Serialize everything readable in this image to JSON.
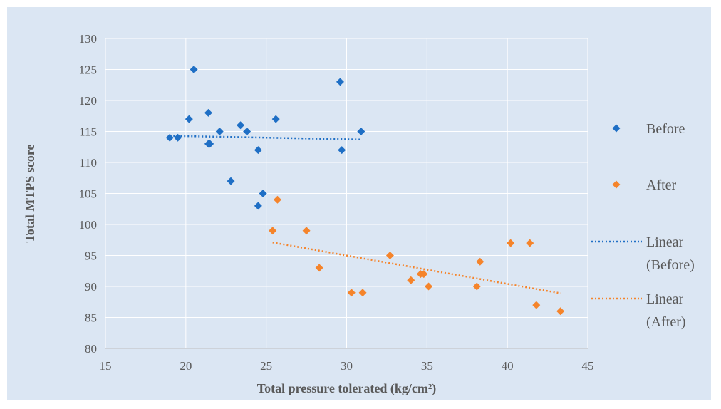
{
  "chart_data": {
    "type": "scatter",
    "title": "",
    "xlabel": "Total pressure tolerated (kg/cm²)",
    "ylabel": "Total MTPS score",
    "xlim": [
      15,
      45
    ],
    "ylim": [
      80,
      130
    ],
    "xticks": [
      "15",
      "20",
      "25",
      "30",
      "35",
      "40",
      "45"
    ],
    "yticks": [
      "80",
      "85",
      "90",
      "95",
      "100",
      "105",
      "110",
      "115",
      "120",
      "125",
      "130"
    ],
    "grid": true,
    "legend_position": "right",
    "series": [
      {
        "name": "Before",
        "color": "#1f6fc5",
        "marker": "diamond",
        "points": [
          [
            19.0,
            114
          ],
          [
            19.5,
            114
          ],
          [
            20.2,
            117
          ],
          [
            20.5,
            125
          ],
          [
            21.4,
            113
          ],
          [
            21.5,
            113
          ],
          [
            21.4,
            118
          ],
          [
            22.1,
            115
          ],
          [
            22.8,
            107
          ],
          [
            23.4,
            116
          ],
          [
            23.8,
            115
          ],
          [
            24.5,
            112
          ],
          [
            24.5,
            103
          ],
          [
            24.8,
            105
          ],
          [
            25.6,
            117
          ],
          [
            29.6,
            123
          ],
          [
            29.7,
            112
          ],
          [
            30.9,
            115
          ]
        ]
      },
      {
        "name": "After",
        "color": "#f5842b",
        "marker": "diamond",
        "points": [
          [
            25.4,
            99
          ],
          [
            25.7,
            104
          ],
          [
            27.5,
            99
          ],
          [
            28.3,
            93
          ],
          [
            30.3,
            89
          ],
          [
            31.0,
            89
          ],
          [
            32.7,
            95
          ],
          [
            34.0,
            91
          ],
          [
            34.6,
            92
          ],
          [
            34.8,
            92
          ],
          [
            35.1,
            90
          ],
          [
            38.1,
            90
          ],
          [
            38.3,
            94
          ],
          [
            40.2,
            97
          ],
          [
            41.4,
            97
          ],
          [
            41.8,
            87
          ],
          [
            43.3,
            86
          ]
        ]
      }
    ],
    "trendlines": [
      {
        "name": "Linear (Before)",
        "label_lines": [
          "Linear",
          "(Before)"
        ],
        "color": "#1f6fc5",
        "x": [
          19.0,
          30.9
        ],
        "y": [
          114.3,
          113.7
        ]
      },
      {
        "name": "Linear (After)",
        "label_lines": [
          "Linear",
          "(After)"
        ],
        "color": "#f5842b",
        "x": [
          25.4,
          43.3
        ],
        "y": [
          97.1,
          88.9
        ]
      }
    ]
  }
}
